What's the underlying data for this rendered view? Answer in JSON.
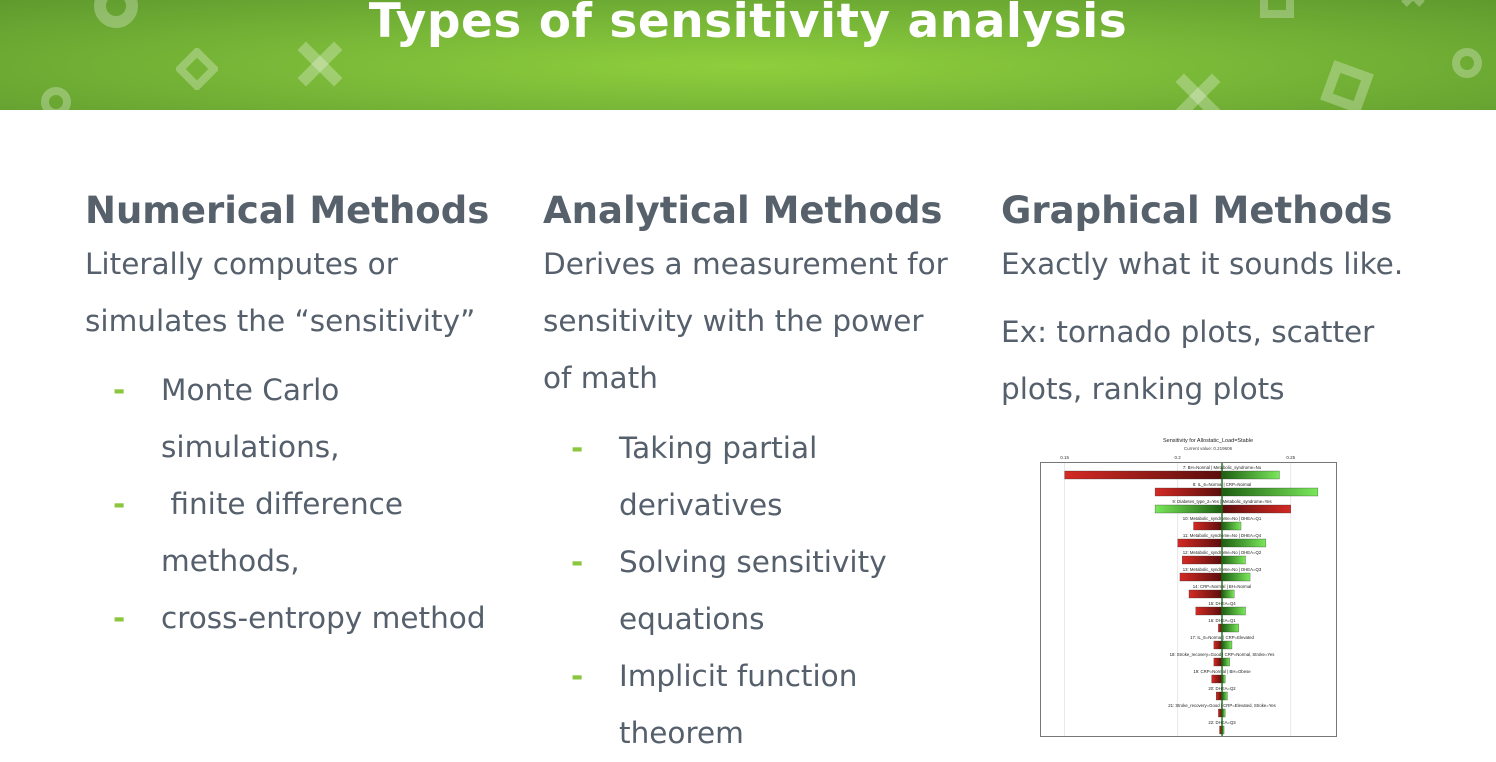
{
  "header": {
    "title": "Types of sensitivity analysis",
    "color": "#79b838"
  },
  "columns": [
    {
      "heading": "Numerical Methods",
      "paragraphs": [
        "Literally computes or simulates the “sensitivity”"
      ],
      "bullets": [
        "Monte Carlo simulations,",
        " finite difference methods,",
        "cross-entropy method"
      ]
    },
    {
      "heading": "Analytical Methods",
      "paragraphs": [
        "Derives a measurement for sensitivity with the power of math"
      ],
      "bullets": [
        "Taking partial derivatives",
        "Solving sensitivity equations",
        "Implicit function theorem"
      ]
    },
    {
      "heading": "Graphical Methods",
      "paragraphs": [
        "Exactly what it sounds like.",
        "Ex: tornado plots, scatter plots, ranking plots"
      ],
      "bullets": []
    }
  ],
  "bullet_marker": "-",
  "tornado": {
    "title": "Sensitivity for Allostatic_Load=Stable",
    "subtitle": "Current value: 0.219606",
    "ticks": [
      "0.15",
      "0.2",
      "0.25"
    ]
  },
  "chart_data": {
    "type": "bar",
    "title": "Sensitivity for Allostatic_Load=Stable",
    "subtitle": "Current value: 0.219606",
    "baseline": 0.2196,
    "xlim": [
      0.14,
      0.27
    ],
    "xticks": [
      0.15,
      0.2,
      0.25
    ],
    "categories": [
      "7: BH=Normal | Metabolic_syndrome=No",
      "8: IL_6=Normal | CRP=Normal",
      "9: Diabetes_type_2=Yes | Metabolic_syndrome=Yes",
      "10: Metabolic_syndrome=No | DHEA=Q1",
      "11: Metabolic_syndrome=No | DHEA=Q4",
      "12: Metabolic_syndrome=No | DHEA=Q2",
      "13: Metabolic_syndrome=No | DHEA=Q3",
      "14: CRP=Normal | BH=Normal",
      "15: DHEA=Q4",
      "16: DHEA=Q1",
      "17: IL_6=Normal | CRP=Elevated",
      "18: Stroke_recovery=Good | CRP=Normal, Stroke=Yes",
      "19: CRP=Normal | BH=Obese",
      "20: DHEA=Q2",
      "21: Stroke_recovery=Good | CRP=Elevated, Stroke=Yes",
      "22: DHEA=Q3"
    ],
    "series": [
      {
        "values": [
          0.15,
          0.19,
          0.25,
          0.207,
          0.2,
          0.202,
          0.201,
          0.205,
          0.208,
          0.218,
          0.216,
          0.216,
          0.215,
          0.217,
          0.218,
          0.2185
        ]
      },
      {
        "values": [
          0.245,
          0.262,
          0.19,
          0.228,
          0.239,
          0.23,
          0.232,
          0.225,
          0.23,
          0.227,
          0.224,
          0.223,
          0.221,
          0.222,
          0.221,
          0.2205
        ]
      }
    ]
  }
}
